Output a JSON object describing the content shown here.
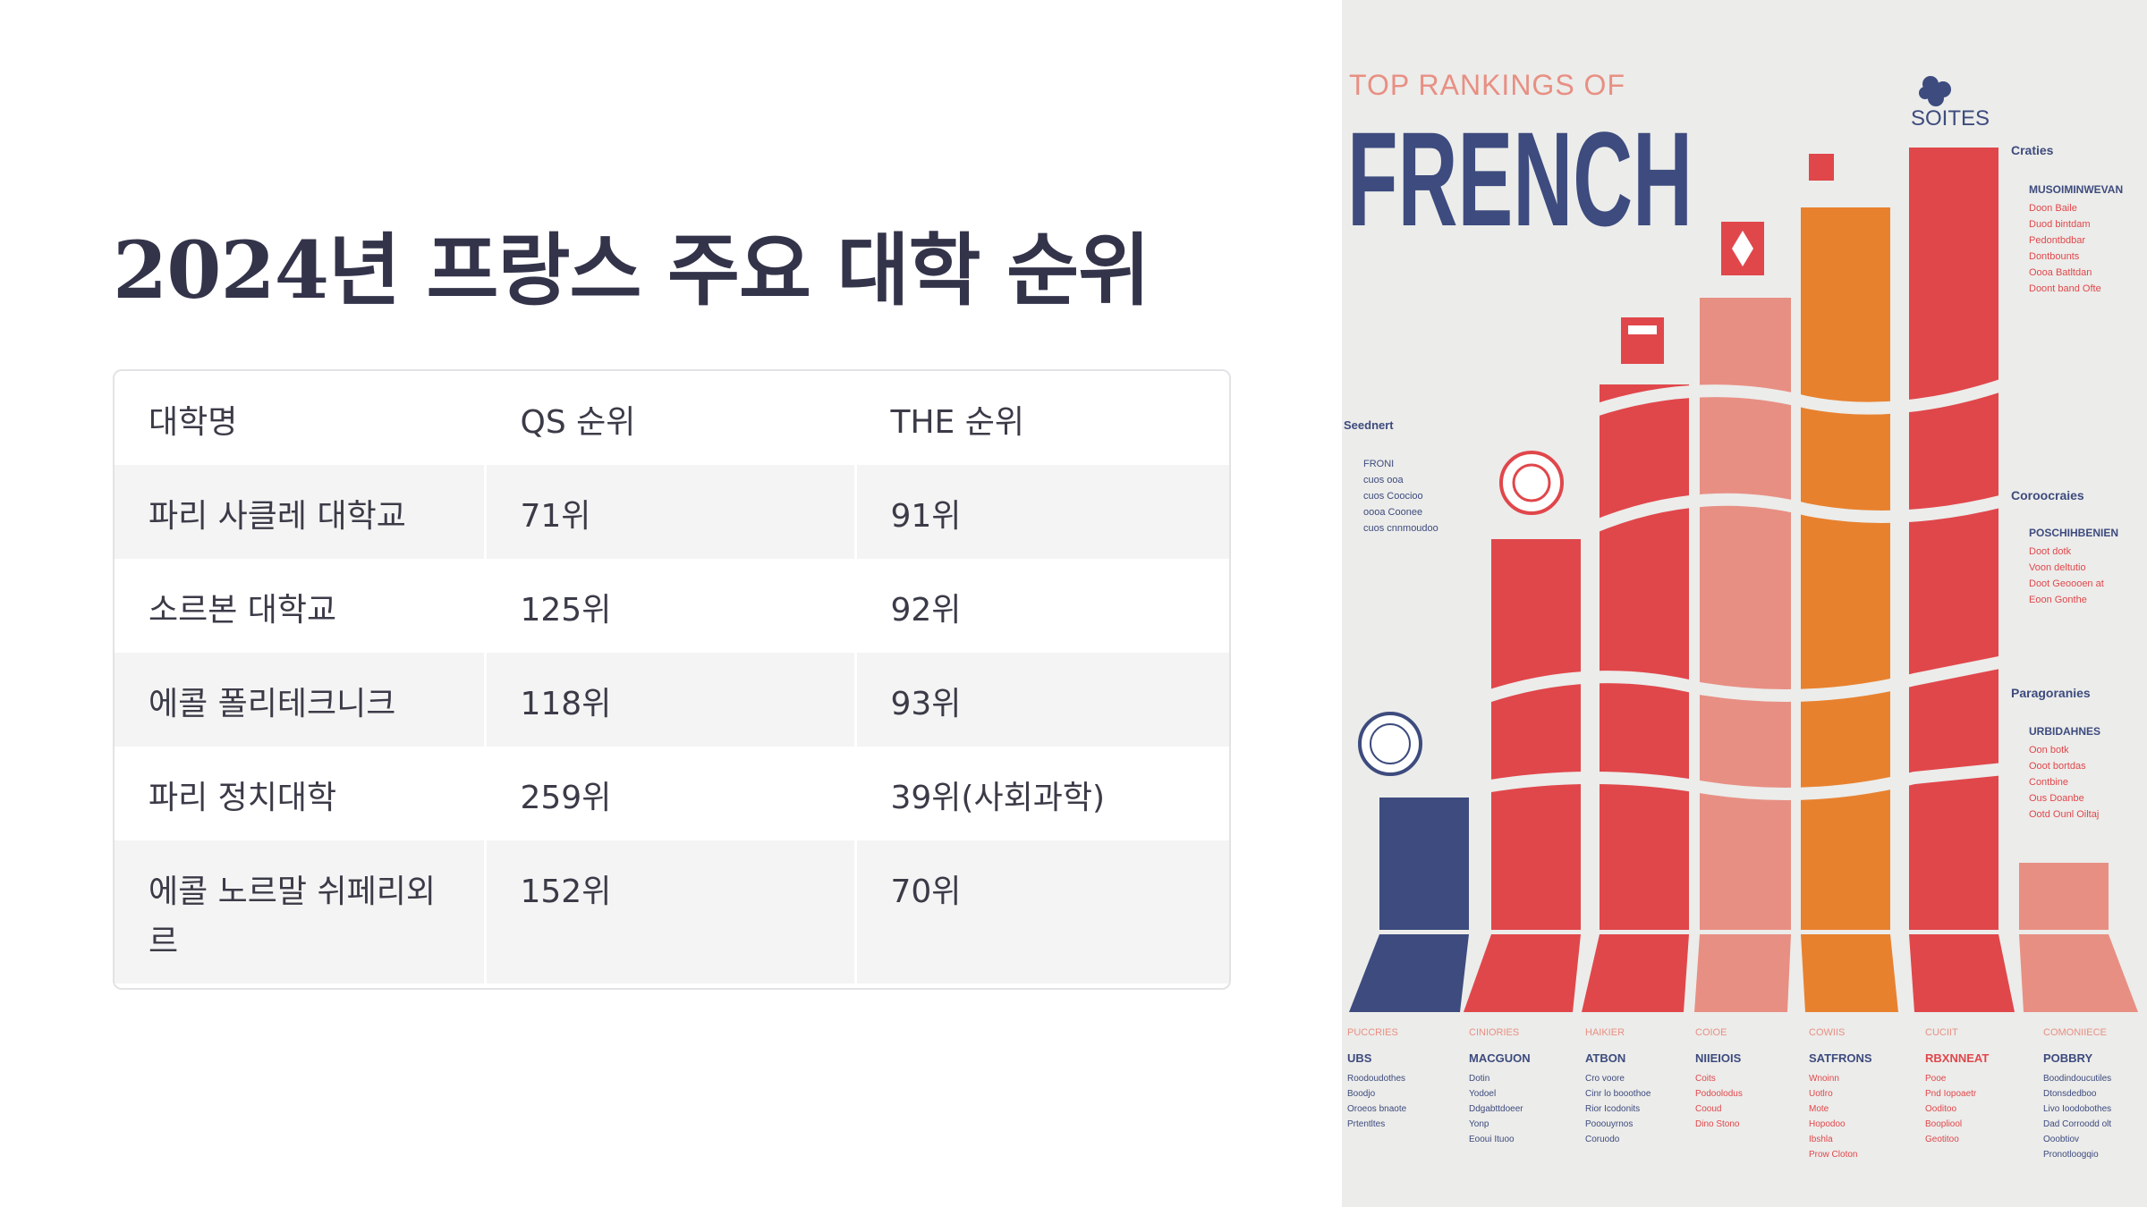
{
  "slide": {
    "title": "2024년 프랑스 주요 대학 순위",
    "table": {
      "headers": [
        "대학명",
        "QS 순위",
        "THE 순위"
      ],
      "rows": [
        [
          "파리 사클레 대학교",
          "71위",
          "91위"
        ],
        [
          "소르본 대학교",
          "125위",
          "92위"
        ],
        [
          "에콜 폴리테크니크",
          "118위",
          "93위"
        ],
        [
          "파리 정치대학",
          "259위",
          "39위(사회과학)"
        ],
        [
          "에콜 노르말 쉬페리외르",
          "152위",
          "70위"
        ]
      ]
    }
  },
  "poster": {
    "kicker": "TOP RANKINGS OF",
    "headline": "FRENCH",
    "brand": "SOITES",
    "colors": {
      "navy": "#3d4b7e",
      "red": "#e0474b",
      "salmon": "#e88f83",
      "orange": "#e8812e",
      "background": "#ececea"
    },
    "side_left": {
      "heading": "Seednert",
      "items": [
        "FRONI",
        "cuos ooa",
        "cuos Coocioo",
        "oooa Coonee",
        "cuos cnnmoudoo"
      ]
    },
    "side_right": [
      {
        "heading": "Craties",
        "items": [
          "MUSOIMINWEVAN",
          "Doon Baile",
          "Duod bintdam",
          "Pedontbdbar",
          "Dontbounts",
          "Oooa Batltdan",
          "Doont band Ofte"
        ]
      },
      {
        "heading": "Coroocraies",
        "items": [
          "POSCHIHBENIEN",
          "Doot dotk",
          "Voon deltutio",
          "Doot Geoooen at",
          "Eoon Gonthe"
        ]
      },
      {
        "heading": "Paragoranies",
        "items": [
          "URBIDAHNES",
          "Oon botk",
          "Ooot bortdas",
          "Contbine",
          "Ous Doanbe",
          "Ootd Ounl Oiltaj"
        ]
      }
    ],
    "columns": [
      {
        "cat": "PUCCRIES",
        "name": "UBS",
        "lines": [
          "Roodoudothes",
          "Boodjo",
          "Oroeos bnaote",
          "Prtentltes"
        ]
      },
      {
        "cat": "CINIORIES",
        "name": "MACGUON",
        "lines": [
          "Dotin",
          "Yodoel",
          "Ddgabttdoeer",
          "Yonp",
          "Eooui Ituoo"
        ]
      },
      {
        "cat": "HAIKIER",
        "name": "ATBON",
        "lines": [
          "Cro voore",
          "Cinr lo booothoe",
          "Rior Icodonits",
          "Pooouyrnos",
          "Coruodo"
        ]
      },
      {
        "cat": "COIOE",
        "name": "NIIEIOIS",
        "lines": [
          "Coits",
          "Podoolodus",
          "Cooud",
          "Dino Stono"
        ]
      },
      {
        "cat": "COWIIS",
        "name": "SATFRONS",
        "lines": [
          "Wnoinn",
          "Uotlro",
          "Mote",
          "Hopodoo",
          "Ibshla",
          "Prow Cloton"
        ]
      },
      {
        "cat": "CUCIIT",
        "name": "RBXNNEAT",
        "lines": [
          "Pooe",
          "Pnd Iopoaetr",
          "Ooditoo",
          "Boopliool",
          "Geotitoo"
        ]
      },
      {
        "cat": "COMONIIECE",
        "name": "POBBRY",
        "lines": [
          "Boodindoucutiles",
          "Dtonsdedboo",
          "Livo Ioodobothes",
          "Dad Corroodd olt",
          "Ooobtiov",
          "Pronotloogqio"
        ]
      }
    ]
  }
}
